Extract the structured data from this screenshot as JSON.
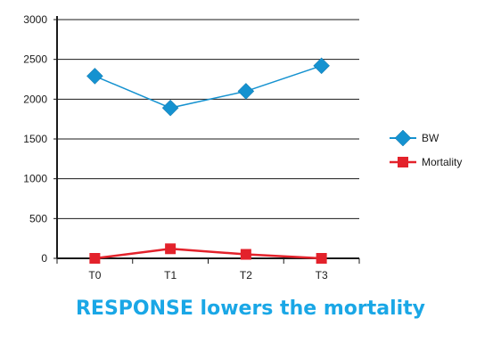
{
  "chart_data": {
    "type": "line",
    "categories": [
      "T0",
      "T1",
      "T2",
      "T3"
    ],
    "series": [
      {
        "name": "BW",
        "values": [
          2290,
          1890,
          2100,
          2420
        ],
        "color": "#1592d0",
        "marker": "diamond"
      },
      {
        "name": "Mortality",
        "values": [
          0,
          120,
          50,
          0
        ],
        "color": "#e3222b",
        "marker": "square"
      }
    ],
    "ylim": [
      0,
      3000
    ],
    "yticks": [
      0,
      500,
      1000,
      1500,
      2000,
      2500,
      3000
    ],
    "grid": true,
    "legend": "right"
  },
  "caption": {
    "text": "RESPONSE lowers the mortality",
    "color": "#1aa7e6"
  }
}
